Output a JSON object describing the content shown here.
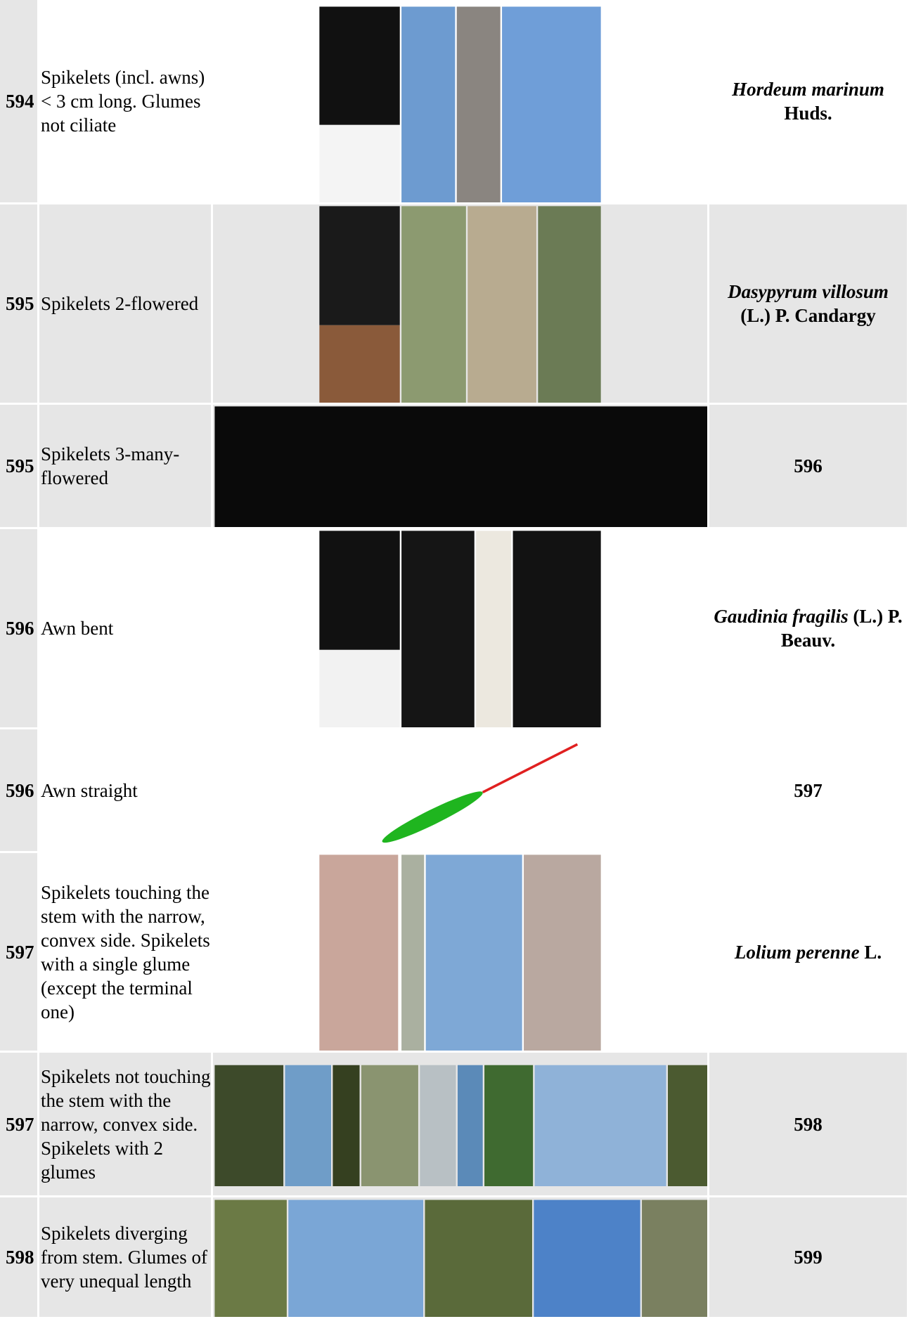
{
  "rows": [
    {
      "number": "594",
      "description": "Spikelets (incl. awns) < 3 cm long. Glumes not ciliate",
      "result": {
        "taxon": "Hordeum marinum",
        "author": "Huds."
      }
    },
    {
      "number": "595",
      "description": "Spikelets 2-flowered",
      "result": {
        "taxon": "Dasypyrum villosum",
        "author": "(L.) P. Candargy"
      }
    },
    {
      "number": "595",
      "description": "Spikelets 3-many-flowered",
      "result": {
        "next": "596"
      }
    },
    {
      "number": "596",
      "description": "Awn bent",
      "result": {
        "taxon": "Gaudinia fragilis",
        "author": "(L.) P. Beauv."
      }
    },
    {
      "number": "596",
      "description": "Awn straight",
      "result": {
        "next": "597"
      }
    },
    {
      "number": "597",
      "description": "Spikelets touching the stem with the narrow, convex side. Spikelets with a single glume (except the terminal one)",
      "result": {
        "taxon": "Lolium perenne",
        "author": "L."
      }
    },
    {
      "number": "597",
      "description": "Spikelets not touching the stem with the narrow, convex side. Spikelets with 2 glumes",
      "result": {
        "next": "598"
      }
    },
    {
      "number": "598",
      "description": "Spikelets diverging from stem. Glumes of very unequal length",
      "result": {
        "next": "599"
      }
    }
  ]
}
